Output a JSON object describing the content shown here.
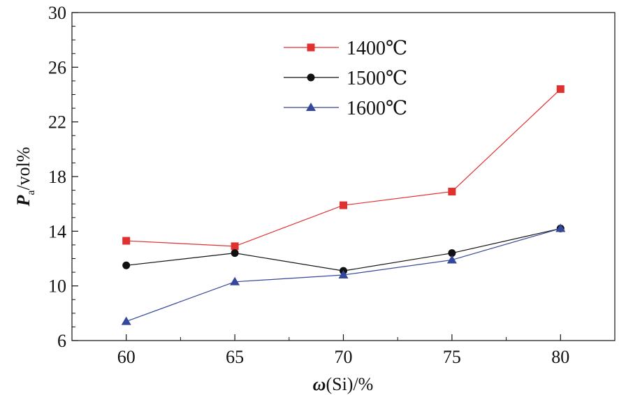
{
  "chart_data": {
    "type": "line",
    "x": [
      60,
      65,
      70,
      75,
      80
    ],
    "xlim": [
      57.5,
      82.5
    ],
    "ylim": [
      6,
      30
    ],
    "x_ticks": [
      "60",
      "65",
      "70",
      "75",
      "80"
    ],
    "y_ticks": [
      "6",
      "10",
      "14",
      "18",
      "22",
      "26",
      "30"
    ],
    "xlabel": {
      "symbol": "ω",
      "rest": "(Si)/%"
    },
    "ylabel": {
      "symbol": "P",
      "subscript": "a",
      "rest": "/vol%"
    },
    "grid": false,
    "legend_position": "top-center",
    "series": [
      {
        "name": "1400℃",
        "color": "#e03030",
        "marker": "square",
        "values": [
          13.3,
          12.9,
          15.9,
          16.9,
          24.4
        ]
      },
      {
        "name": "1500℃",
        "color": "#111111",
        "marker": "circle",
        "values": [
          11.5,
          12.4,
          11.1,
          12.4,
          14.2
        ]
      },
      {
        "name": "1600℃",
        "color": "#34479a",
        "marker": "triangle",
        "values": [
          7.4,
          10.3,
          10.8,
          11.9,
          14.2
        ]
      }
    ]
  }
}
